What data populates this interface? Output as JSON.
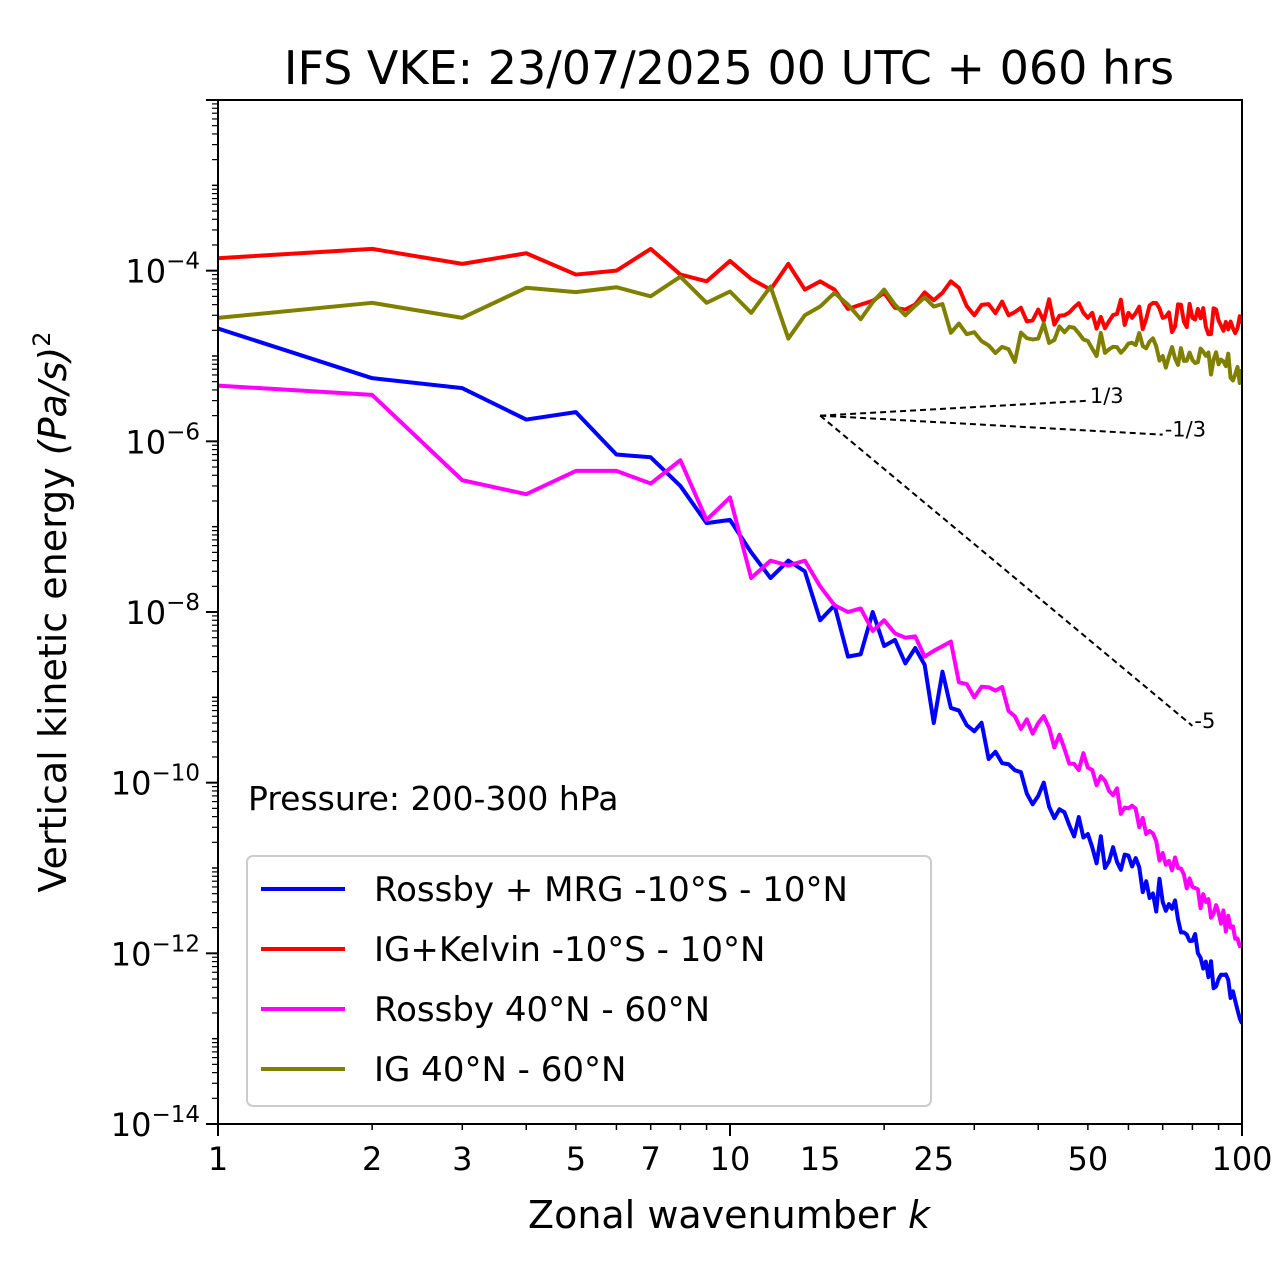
{
  "chart_data": {
    "type": "line",
    "title": "IFS VKE: 23/07/2025 00 UTC + 060 hrs",
    "xlabel": "Zonal wavenumber",
    "xlabel_var": "k",
    "ylabel": "Vertical kinetic energy",
    "ylabel_var": "(Pa/s)",
    "ylabel_exp": "2",
    "xscale": "log",
    "yscale": "log",
    "xlim": [
      1,
      100
    ],
    "ylim": [
      1e-14,
      0.01
    ],
    "x_ticks": [
      {
        "value": 1,
        "label": "1"
      },
      {
        "value": 2,
        "label": "2"
      },
      {
        "value": 3,
        "label": "3"
      },
      {
        "value": 5,
        "label": "5"
      },
      {
        "value": 7,
        "label": "7"
      },
      {
        "value": 10,
        "label": "10"
      },
      {
        "value": 15,
        "label": "15"
      },
      {
        "value": 25,
        "label": "25"
      },
      {
        "value": 50,
        "label": "50"
      },
      {
        "value": 100,
        "label": "100"
      }
    ],
    "y_ticks": [
      {
        "exp": -4,
        "base": "10",
        "sup": "−4"
      },
      {
        "exp": -6,
        "base": "10",
        "sup": "−6"
      },
      {
        "exp": -8,
        "base": "10",
        "sup": "−8"
      },
      {
        "exp": -10,
        "base": "10",
        "sup": "−10"
      },
      {
        "exp": -12,
        "base": "10",
        "sup": "−12"
      },
      {
        "exp": -14,
        "base": "10",
        "sup": "−14"
      }
    ],
    "annotation": "Pressure: 200-300 hPa",
    "legend_position": "lower-left",
    "grid": false,
    "reference_slopes": [
      {
        "label": "1/3",
        "slope": 0.3333,
        "x_start": 15,
        "x_end": 50,
        "y_start": 2e-06
      },
      {
        "label": "-1/3",
        "slope": -0.3333,
        "x_start": 15,
        "x_end": 70,
        "y_start": 2e-06
      },
      {
        "label": "-5",
        "slope": -5,
        "x_start": 15,
        "x_end": 80,
        "y_start": 2e-06
      }
    ],
    "series": [
      {
        "name": "Rossby + MRG -10°S - 10°N",
        "color": "#0000ff",
        "anchors": [
          [
            1,
            2.1e-05
          ],
          [
            2,
            5.5e-06
          ],
          [
            3,
            4.2e-06
          ],
          [
            4,
            1.8e-06
          ],
          [
            5,
            2.2e-06
          ],
          [
            6,
            7e-07
          ],
          [
            7,
            6.5e-07
          ],
          [
            8,
            3e-07
          ],
          [
            9,
            1.1e-07
          ],
          [
            10,
            1.2e-07
          ],
          [
            11,
            5e-08
          ],
          [
            12,
            2.5e-08
          ],
          [
            13,
            4e-08
          ],
          [
            14,
            3e-08
          ],
          [
            15,
            8e-09
          ],
          [
            16,
            1.2e-08
          ],
          [
            17,
            3e-09
          ],
          [
            18,
            3.2e-09
          ],
          [
            19,
            1e-08
          ],
          [
            20,
            4e-09
          ],
          [
            22,
            2.5e-09
          ],
          [
            24,
            2.4e-09
          ],
          [
            25,
            5e-10
          ],
          [
            26,
            2e-09
          ],
          [
            28,
            7e-10
          ],
          [
            30,
            4e-10
          ],
          [
            33,
            2.3e-10
          ],
          [
            36,
            1.4e-10
          ],
          [
            40,
            7e-11
          ],
          [
            45,
            4.5e-11
          ],
          [
            50,
            2.5e-11
          ],
          [
            55,
            1.2e-11
          ],
          [
            60,
            1.4e-11
          ],
          [
            65,
            7e-12
          ],
          [
            70,
            4e-12
          ],
          [
            75,
            2.5e-12
          ],
          [
            80,
            1.4e-12
          ],
          [
            85,
            8e-13
          ],
          [
            90,
            5e-13
          ],
          [
            95,
            3e-13
          ],
          [
            100,
            1.5e-13
          ]
        ],
        "noise": 0.45
      },
      {
        "name": "IG+Kelvin -10°S - 10°N",
        "color": "#ff0000",
        "anchors": [
          [
            1,
            0.00014
          ],
          [
            2,
            0.00018
          ],
          [
            3,
            0.00012
          ],
          [
            4,
            0.00016
          ],
          [
            5,
            9e-05
          ],
          [
            6,
            0.0001
          ],
          [
            7,
            0.00018
          ],
          [
            8,
            9e-05
          ],
          [
            9,
            7.5e-05
          ],
          [
            10,
            0.00013
          ],
          [
            11,
            8e-05
          ],
          [
            12,
            6e-05
          ],
          [
            13,
            0.00012
          ],
          [
            14,
            6e-05
          ],
          [
            15,
            7.5e-05
          ],
          [
            16,
            6e-05
          ],
          [
            18,
            4e-05
          ],
          [
            20,
            5.5e-05
          ],
          [
            22,
            3.5e-05
          ],
          [
            25,
            4.5e-05
          ],
          [
            27,
            7.5e-05
          ],
          [
            30,
            3e-05
          ],
          [
            35,
            3e-05
          ],
          [
            40,
            3.5e-05
          ],
          [
            45,
            3e-05
          ],
          [
            50,
            2.8e-05
          ],
          [
            60,
            3.2e-05
          ],
          [
            70,
            2.8e-05
          ],
          [
            80,
            2.8e-05
          ],
          [
            90,
            2.6e-05
          ],
          [
            100,
            2.4e-05
          ]
        ],
        "noise": 0.35
      },
      {
        "name": "Rossby 40°N - 60°N",
        "color": "#ff00ff",
        "anchors": [
          [
            1,
            4.5e-06
          ],
          [
            2,
            3.5e-06
          ],
          [
            3,
            3.5e-07
          ],
          [
            4,
            2.4e-07
          ],
          [
            5,
            4.5e-07
          ],
          [
            6,
            4.5e-07
          ],
          [
            7,
            3.2e-07
          ],
          [
            8,
            6e-07
          ],
          [
            9,
            1.2e-07
          ],
          [
            10,
            2.2e-07
          ],
          [
            11,
            2.5e-08
          ],
          [
            12,
            4e-08
          ],
          [
            13,
            3.5e-08
          ],
          [
            14,
            4e-08
          ],
          [
            15,
            2e-08
          ],
          [
            16,
            1.2e-08
          ],
          [
            17,
            1e-08
          ],
          [
            18,
            1.1e-08
          ],
          [
            19,
            6e-09
          ],
          [
            20,
            8e-09
          ],
          [
            22,
            5e-09
          ],
          [
            24,
            3e-09
          ],
          [
            25,
            3.5e-09
          ],
          [
            27,
            4.5e-09
          ],
          [
            28,
            1.5e-09
          ],
          [
            30,
            1e-09
          ],
          [
            33,
            1.2e-09
          ],
          [
            36,
            6e-10
          ],
          [
            40,
            5e-10
          ],
          [
            45,
            2.5e-10
          ],
          [
            50,
            1.5e-10
          ],
          [
            55,
            8e-11
          ],
          [
            60,
            5e-11
          ],
          [
            65,
            2.5e-11
          ],
          [
            70,
            1.5e-11
          ],
          [
            75,
            1e-11
          ],
          [
            80,
            6e-12
          ],
          [
            85,
            4e-12
          ],
          [
            90,
            3e-12
          ],
          [
            95,
            2e-12
          ],
          [
            100,
            1.3e-12
          ]
        ],
        "noise": 0.3
      },
      {
        "name": "IG 40°N - 60°N",
        "color": "#808000",
        "anchors": [
          [
            1,
            2.8e-05
          ],
          [
            2,
            4.2e-05
          ],
          [
            3,
            2.8e-05
          ],
          [
            4,
            6.3e-05
          ],
          [
            5,
            5.6e-05
          ],
          [
            6,
            6.4e-05
          ],
          [
            7,
            5e-05
          ],
          [
            8,
            8.5e-05
          ],
          [
            9,
            4.2e-05
          ],
          [
            10,
            5.7e-05
          ],
          [
            11,
            3.2e-05
          ],
          [
            12,
            6.5e-05
          ],
          [
            13,
            1.6e-05
          ],
          [
            14,
            3e-05
          ],
          [
            15,
            3.8e-05
          ],
          [
            16,
            5.5e-05
          ],
          [
            17,
            4e-05
          ],
          [
            18,
            2.7e-05
          ],
          [
            20,
            6e-05
          ],
          [
            22,
            3e-05
          ],
          [
            25,
            3.8e-05
          ],
          [
            28,
            2.4e-05
          ],
          [
            30,
            1.9e-05
          ],
          [
            35,
            1.2e-05
          ],
          [
            40,
            1.6e-05
          ],
          [
            45,
            1.9e-05
          ],
          [
            50,
            1.5e-05
          ],
          [
            55,
            1.2e-05
          ],
          [
            60,
            1.4e-05
          ],
          [
            70,
            1e-05
          ],
          [
            80,
            9e-06
          ],
          [
            90,
            8e-06
          ],
          [
            100,
            7e-06
          ]
        ],
        "noise": 0.35
      }
    ]
  }
}
